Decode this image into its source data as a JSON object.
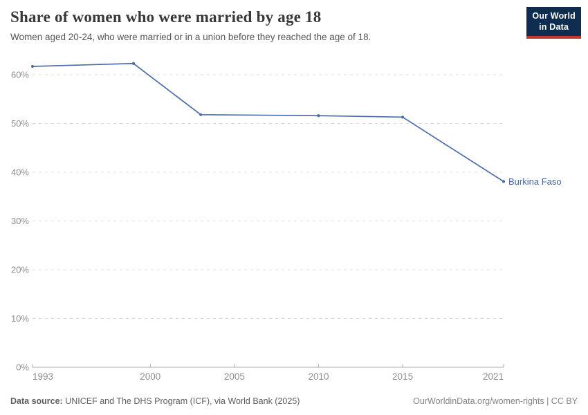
{
  "header": {
    "title": "Share of women who were married by age 18",
    "subtitle": "Women aged 20-24, who were married or in a union before they reached the age of 18.",
    "logo": {
      "line1": "Our World",
      "line2": "in Data"
    }
  },
  "chart_data": {
    "type": "line",
    "title": "Share of women who were married by age 18",
    "series": [
      {
        "name": "Burkina Faso",
        "color": "#4c6ca8",
        "points": [
          {
            "year": 1993,
            "value": 61.7
          },
          {
            "year": 1999,
            "value": 62.3
          },
          {
            "year": 2003,
            "value": 51.8
          },
          {
            "year": 2010,
            "value": 51.6
          },
          {
            "year": 2015,
            "value": 51.3
          },
          {
            "year": 2021,
            "value": 38.1
          }
        ]
      }
    ],
    "xlabel": "",
    "ylabel": "",
    "xlim": [
      1993,
      2021
    ],
    "ylim": [
      0,
      63
    ],
    "x_ticks": [
      1993,
      2000,
      2005,
      2010,
      2015,
      2021
    ],
    "y_ticks": [
      0,
      10,
      20,
      30,
      40,
      50,
      60
    ],
    "y_tick_suffix": "%",
    "grid": "dashed-horizontal-gridlines",
    "legend": "inline-entity-label-at-line-end"
  },
  "footer": {
    "source_label": "Data source:",
    "source_text": " UNICEF and The DHS Program (ICF), via World Bank (2025)",
    "credit": "OurWorldinData.org/women-rights | CC BY"
  },
  "colors": {
    "line": "#4c6ca8",
    "entity_label": "#48669c",
    "grid": "#dcdcdc",
    "axis": "#a9a9a9",
    "tick_text": "#8e8e8e",
    "title_text": "#383838",
    "subtitle_text": "#555555",
    "footer_text": "#5f5f5f",
    "credit_text": "#858585",
    "logo_bg": "#0f2d51",
    "logo_red": "#c5362d"
  }
}
